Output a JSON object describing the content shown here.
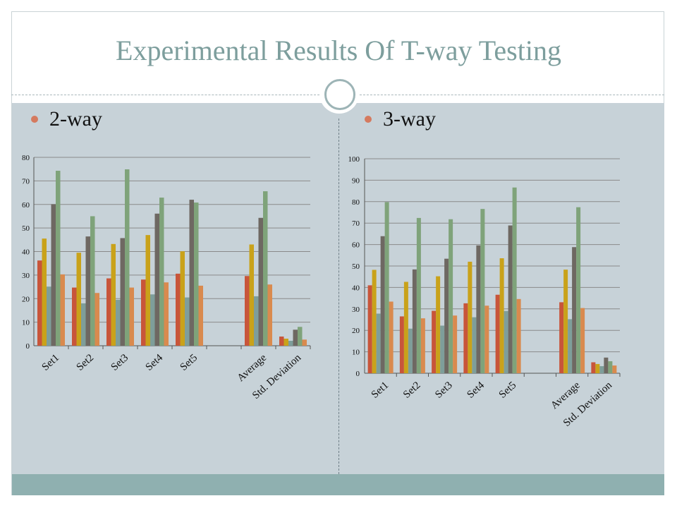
{
  "slide": {
    "title": "Experimental Results Of T-way Testing"
  },
  "left_panel": {
    "heading": "2-way"
  },
  "right_panel": {
    "heading": "3-way"
  },
  "colors": {
    "series": [
      "#c8553a",
      "#c9a21a",
      "#7e9e9a",
      "#6e6862",
      "#7fa37a",
      "#d98a4e"
    ]
  },
  "chart_data": [
    {
      "type": "bar",
      "categories": [
        "Set1",
        "Set2",
        "Set3",
        "Set4",
        "Set5",
        "",
        "Average",
        "Std. Deviation"
      ],
      "ylim": [
        0,
        80
      ],
      "yticks": [
        0,
        10,
        20,
        30,
        40,
        50,
        60,
        70,
        80
      ],
      "grid": true,
      "series": [
        {
          "values": [
            36.2,
            24.7,
            28.6,
            28.1,
            30.6,
            null,
            29.6,
            3.9
          ]
        },
        {
          "values": [
            45.5,
            39.5,
            43.2,
            47.0,
            40.1,
            null,
            43.0,
            3.0
          ]
        },
        {
          "values": [
            25.1,
            18.0,
            19.5,
            21.8,
            20.5,
            null,
            21.0,
            2.1
          ]
        },
        {
          "values": [
            60.1,
            46.4,
            45.7,
            56.1,
            62.0,
            null,
            54.3,
            6.8
          ]
        },
        {
          "values": [
            74.3,
            55.0,
            74.9,
            62.9,
            60.8,
            null,
            65.6,
            8.0
          ]
        },
        {
          "values": [
            30.3,
            22.4,
            24.7,
            26.9,
            25.5,
            null,
            26.0,
            2.6
          ]
        }
      ]
    },
    {
      "type": "bar",
      "categories": [
        "Set1",
        "Set2",
        "Set3",
        "Set4",
        "Set5",
        "",
        "Average",
        "Std. Deviation"
      ],
      "ylim": [
        0,
        100
      ],
      "yticks": [
        0,
        10,
        20,
        30,
        40,
        50,
        60,
        70,
        80,
        90,
        100
      ],
      "grid": true,
      "series": [
        {
          "values": [
            41.0,
            26.5,
            29.1,
            32.6,
            36.6,
            null,
            33.1,
            5.1
          ]
        },
        {
          "values": [
            48.2,
            42.6,
            45.2,
            52.0,
            53.6,
            null,
            48.3,
            4.3
          ]
        },
        {
          "values": [
            27.8,
            20.8,
            22.2,
            26.1,
            29.0,
            null,
            25.2,
            3.3
          ]
        },
        {
          "values": [
            63.9,
            48.4,
            53.4,
            59.6,
            68.9,
            null,
            58.8,
            7.3
          ]
        },
        {
          "values": [
            79.8,
            72.4,
            71.8,
            76.6,
            86.6,
            null,
            77.4,
            5.6
          ]
        },
        {
          "values": [
            33.4,
            25.6,
            26.9,
            31.5,
            34.6,
            null,
            30.4,
            3.6
          ]
        }
      ]
    }
  ]
}
